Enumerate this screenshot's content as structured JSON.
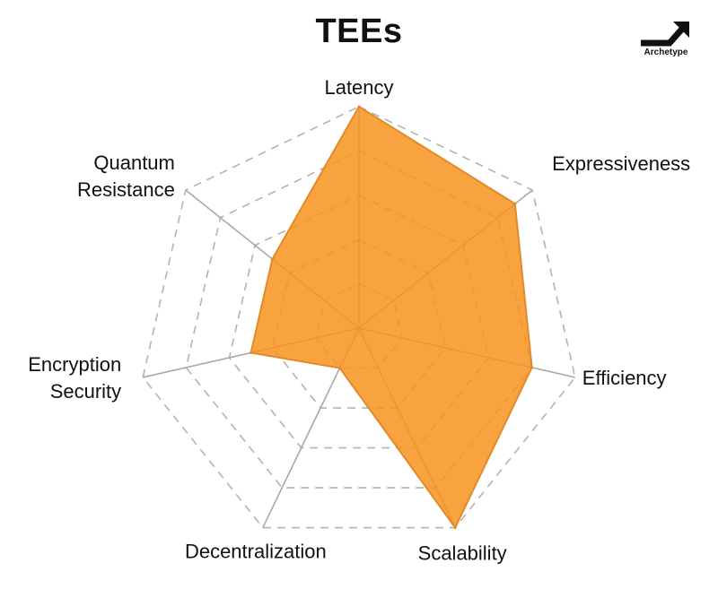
{
  "brand": {
    "logo_text": "Archetype",
    "logo_color": "#111111"
  },
  "chart_data": {
    "type": "radar",
    "title": "TEEs",
    "axes": [
      "Latency",
      "Expressiveness",
      "Efficiency",
      "Scalability",
      "Decentralization",
      "Encryption Security",
      "Quantum Resistance"
    ],
    "axis_label_lines": [
      [
        "Latency"
      ],
      [
        "Expressiveness"
      ],
      [
        "Efficiency"
      ],
      [
        "Scalability"
      ],
      [
        "Decentralization"
      ],
      [
        "Encryption",
        "Security"
      ],
      [
        "Quantum",
        "Resistance"
      ]
    ],
    "scale": {
      "min": 0,
      "max": 5,
      "rings": 5
    },
    "series": [
      {
        "values": [
          5,
          4.5,
          4,
          5,
          1,
          2.5,
          2.5
        ],
        "color": "#F7921E"
      }
    ],
    "grid": {
      "style": "dashed",
      "color": "#b3b3b3"
    }
  }
}
